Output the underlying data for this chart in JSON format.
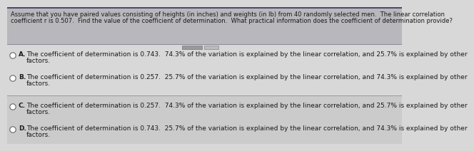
{
  "question_line1": "Assume that you have paired values consisting of heights (in inches) and weights (in lb) from 40 randomly selected men.  The linear correlation",
  "question_line2": "coefficient r is 0.507.  Find the value of the coefficient of determination.  What practical information does the coefficient of determination provide?",
  "opt_a_line1": "The coefficient of determination is 0.743.  74.3% of the variation is explained by the linear correlation, and 25.7% is explained by other",
  "opt_a_line2": "factors.",
  "opt_b_line1": "The coefficient of determination is 0.257.  25.7% of the variation is explained by the linear correlation, and 74.3% is explained by other",
  "opt_b_line2": "factors.",
  "opt_c_line1": "The coefficient of determination is 0.257.  74.3% of the variation is explained by the linear correlation, and 25.7% is explained by other",
  "opt_c_line2": "factors.",
  "opt_d_line1": "The coefficient of determination is 0.743.  25.7% of the variation is explained by the linear correlation, and 74.3% is explained by other",
  "opt_d_line2": "factors.",
  "bg_top": "#b8b8bc",
  "bg_ab": "#d8d8d8",
  "bg_cd": "#cbcbcb",
  "divider_top_color": "#8888aa",
  "divider_mid_color": "#aaaaaa",
  "text_color": "#1a1a1a",
  "question_fontsize": 6.0,
  "option_fontsize": 6.5,
  "label_fontsize": 6.5,
  "circle_color": "white",
  "circle_edge_color": "#666666",
  "scroll_color1": "#999999",
  "scroll_color2": "#bbbbbb"
}
